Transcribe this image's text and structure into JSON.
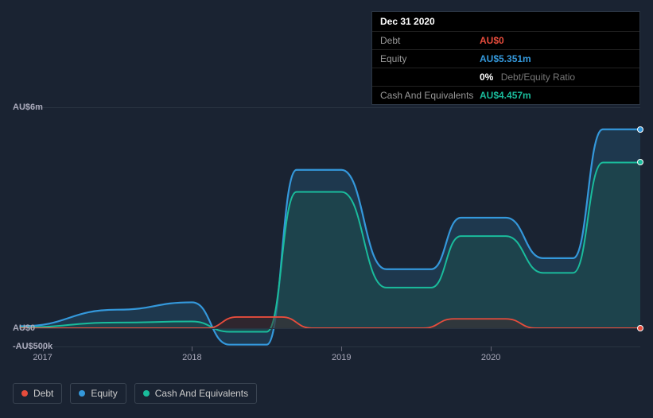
{
  "tooltip": {
    "date": "Dec 31 2020",
    "rows": {
      "debt": {
        "label": "Debt",
        "value": "AU$0"
      },
      "equity": {
        "label": "Equity",
        "value": "AU$5.351m"
      },
      "ratio": {
        "value": "0%",
        "label": "Debt/Equity Ratio"
      },
      "cash": {
        "label": "Cash And Equivalents",
        "value": "AU$4.457m"
      }
    }
  },
  "chart": {
    "type": "area-line",
    "background_color": "#1a2332",
    "grid_color": "#2a3442",
    "text_color": "#aab",
    "y_axis": {
      "min": -0.5,
      "max": 6.0,
      "ticks": [
        {
          "v": 6.0,
          "label": "AU$6m"
        },
        {
          "v": 0.0,
          "label": "AU$0"
        },
        {
          "v": -0.5,
          "label": "-AU$500k"
        }
      ]
    },
    "x_axis": {
      "min": 2016.8,
      "max": 2021.0,
      "ticks": [
        {
          "v": 2017,
          "label": "2017"
        },
        {
          "v": 2018,
          "label": "2018"
        },
        {
          "v": 2019,
          "label": "2019"
        },
        {
          "v": 2020,
          "label": "2020"
        }
      ]
    },
    "series": {
      "equity": {
        "color": "#3498db",
        "fill": "#234a66",
        "fill_opacity": 0.55,
        "line_width": 2.2,
        "points": [
          [
            2016.85,
            0.05
          ],
          [
            2017.5,
            0.5
          ],
          [
            2018.0,
            0.7
          ],
          [
            2018.25,
            -0.45
          ],
          [
            2018.5,
            -0.45
          ],
          [
            2018.7,
            4.3
          ],
          [
            2019.0,
            4.3
          ],
          [
            2019.3,
            1.6
          ],
          [
            2019.6,
            1.6
          ],
          [
            2019.8,
            3.0
          ],
          [
            2020.1,
            3.0
          ],
          [
            2020.35,
            1.9
          ],
          [
            2020.55,
            1.9
          ],
          [
            2020.75,
            5.4
          ],
          [
            2021.0,
            5.4
          ]
        ]
      },
      "cash": {
        "color": "#1abc9c",
        "fill": "#1e4d4a",
        "fill_opacity": 0.55,
        "line_width": 2.0,
        "points": [
          [
            2016.85,
            0.02
          ],
          [
            2017.5,
            0.15
          ],
          [
            2018.0,
            0.18
          ],
          [
            2018.25,
            -0.1
          ],
          [
            2018.5,
            -0.1
          ],
          [
            2018.7,
            3.7
          ],
          [
            2019.0,
            3.7
          ],
          [
            2019.3,
            1.1
          ],
          [
            2019.6,
            1.1
          ],
          [
            2019.8,
            2.5
          ],
          [
            2020.1,
            2.5
          ],
          [
            2020.35,
            1.5
          ],
          [
            2020.55,
            1.5
          ],
          [
            2020.75,
            4.5
          ],
          [
            2021.0,
            4.5
          ]
        ]
      },
      "debt": {
        "color": "#e74c3c",
        "fill": "#4a2a2a",
        "fill_opacity": 0.45,
        "line_width": 1.8,
        "points": [
          [
            2016.85,
            0
          ],
          [
            2018.1,
            0
          ],
          [
            2018.3,
            0.3
          ],
          [
            2018.6,
            0.3
          ],
          [
            2018.8,
            0
          ],
          [
            2019.55,
            0
          ],
          [
            2019.75,
            0.25
          ],
          [
            2020.1,
            0.25
          ],
          [
            2020.3,
            0
          ],
          [
            2021.0,
            0
          ]
        ]
      }
    },
    "end_markers": [
      {
        "series": "equity",
        "x": 2021.0,
        "y": 5.4,
        "color": "#3498db"
      },
      {
        "series": "cash",
        "x": 2021.0,
        "y": 4.5,
        "color": "#1abc9c"
      },
      {
        "series": "debt",
        "x": 2021.0,
        "y": 0.0,
        "color": "#e74c3c"
      }
    ]
  },
  "legend": {
    "items": [
      {
        "key": "debt",
        "label": "Debt",
        "color": "#e74c3c"
      },
      {
        "key": "equity",
        "label": "Equity",
        "color": "#3498db"
      },
      {
        "key": "cash",
        "label": "Cash And Equivalents",
        "color": "#1abc9c"
      }
    ]
  }
}
